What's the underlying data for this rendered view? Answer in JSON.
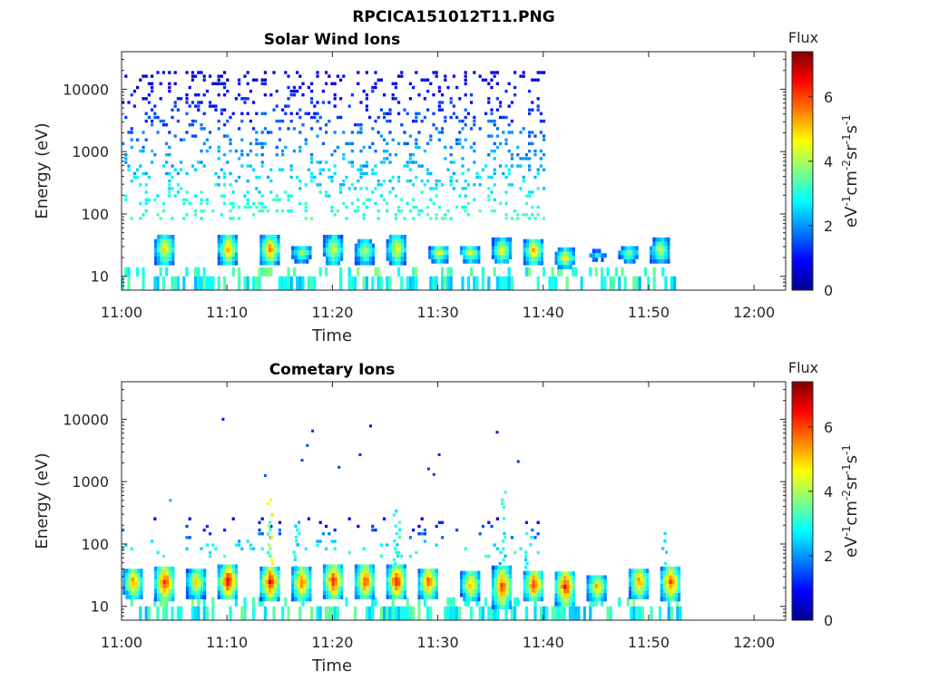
{
  "figure": {
    "title": "RPCICA151012T11.PNG"
  },
  "colormap": [
    "#00008f",
    "#0000ff",
    "#0080ff",
    "#00ffff",
    "#80ff80",
    "#ffff00",
    "#ff8000",
    "#ff0000",
    "#800000"
  ],
  "chart_data": [
    {
      "type": "heatmap",
      "title": "Solar Wind Ions",
      "xlabel": "Time",
      "ylabel": "Energy (eV)",
      "y_scale": "log",
      "ylim": [
        6,
        40000
      ],
      "xlim": [
        "11:00",
        "12:03"
      ],
      "x_tick_labels": [
        "11:00",
        "11:10",
        "11:20",
        "11:30",
        "11:40",
        "11:50",
        "12:00"
      ],
      "y_tick_labels": [
        "10",
        "100",
        "1000",
        "10000"
      ],
      "colorbar": {
        "title": "Flux",
        "label": "eV-1cm-2sr-1s-1",
        "range": [
          0,
          7.4
        ],
        "tick_labels": [
          "0",
          "2",
          "4",
          "6"
        ]
      },
      "grid": false,
      "sparse_region": {
        "start": "11:00",
        "end": "11:40",
        "emin": 80,
        "emax": 18000,
        "density": 0.16
      },
      "bursts": [
        {
          "t": "11:04",
          "e": [
            15,
            42
          ],
          "flux": 5.2
        },
        {
          "t": "11:10",
          "e": [
            15,
            42
          ],
          "flux": 5.6
        },
        {
          "t": "11:14",
          "e": [
            15,
            42
          ],
          "flux": 5.8
        },
        {
          "t": "11:17",
          "e": [
            16,
            30
          ],
          "flux": 4.2
        },
        {
          "t": "11:20",
          "e": [
            15,
            42
          ],
          "flux": 4.8
        },
        {
          "t": "11:23",
          "e": [
            15,
            36
          ],
          "flux": 4.5
        },
        {
          "t": "11:26",
          "e": [
            15,
            42
          ],
          "flux": 5.0
        },
        {
          "t": "11:30",
          "e": [
            16,
            30
          ],
          "flux": 4.8
        },
        {
          "t": "11:33",
          "e": [
            16,
            30
          ],
          "flux": 4.6
        },
        {
          "t": "11:36",
          "e": [
            16,
            36
          ],
          "flux": 5.0
        },
        {
          "t": "11:39",
          "e": [
            15,
            36
          ],
          "flux": 5.6
        },
        {
          "t": "11:42",
          "e": [
            13,
            26
          ],
          "flux": 5.0
        },
        {
          "t": "11:45",
          "e": [
            17,
            24
          ],
          "flux": 3.0
        },
        {
          "t": "11:48",
          "e": [
            16,
            30
          ],
          "flux": 4.0
        },
        {
          "t": "11:51",
          "e": [
            16,
            36
          ],
          "flux": 4.6
        }
      ]
    },
    {
      "type": "heatmap",
      "title": "Cometary Ions",
      "xlabel": "Time",
      "ylabel": "Energy (eV)",
      "y_scale": "log",
      "ylim": [
        6,
        40000
      ],
      "xlim": [
        "11:00",
        "12:03"
      ],
      "x_tick_labels": [
        "11:00",
        "11:10",
        "11:20",
        "11:30",
        "11:40",
        "11:50",
        "12:00"
      ],
      "y_tick_labels": [
        "10",
        "100",
        "1000",
        "10000"
      ],
      "colorbar": {
        "title": "Flux",
        "label": "eV-1cm-2sr-1s-1",
        "range": [
          0,
          7.4
        ],
        "tick_labels": [
          "0",
          "2",
          "4",
          "6"
        ]
      },
      "grid": false,
      "sparse_region": {
        "start": "11:00",
        "end": "11:40",
        "emin": 60,
        "emax": 250,
        "density": 0.05
      },
      "isolated_points": [
        {
          "t": "11:09.5",
          "e": 10000,
          "flux": 0.9
        },
        {
          "t": "11:04.5",
          "e": 500,
          "flux": 2.2
        },
        {
          "t": "11:13.5",
          "e": 1250,
          "flux": 1.6
        },
        {
          "t": "11:17",
          "e": 2200,
          "flux": 1.4
        },
        {
          "t": "11:17.5",
          "e": 3800,
          "flux": 1.4
        },
        {
          "t": "11:18",
          "e": 6500,
          "flux": 1.2
        },
        {
          "t": "11:20.5",
          "e": 1700,
          "flux": 1.3
        },
        {
          "t": "11:22.5",
          "e": 2700,
          "flux": 1.2
        },
        {
          "t": "11:23.5",
          "e": 7800,
          "flux": 1.0
        },
        {
          "t": "11:29",
          "e": 1600,
          "flux": 1.4
        },
        {
          "t": "11:29.5",
          "e": 1300,
          "flux": 1.3
        },
        {
          "t": "11:30",
          "e": 2700,
          "flux": 1.2
        },
        {
          "t": "11:35.5",
          "e": 6200,
          "flux": 1.0
        },
        {
          "t": "11:37.5",
          "e": 2100,
          "flux": 1.2
        }
      ],
      "bursts": [
        {
          "t": "11:01",
          "e": [
            13,
            40
          ],
          "flux": 5.8
        },
        {
          "t": "11:04",
          "e": [
            12,
            40
          ],
          "flux": 6.8
        },
        {
          "t": "11:07",
          "e": [
            13,
            40
          ],
          "flux": 5.2
        },
        {
          "t": "11:10",
          "e": [
            13,
            42
          ],
          "flux": 7.0
        },
        {
          "t": "11:14",
          "e": [
            12,
            42
          ],
          "flux": 6.9
        },
        {
          "t": "11:17",
          "e": [
            12,
            42
          ],
          "flux": 6.0
        },
        {
          "t": "11:20",
          "e": [
            13,
            42
          ],
          "flux": 6.8
        },
        {
          "t": "11:23",
          "e": [
            13,
            42
          ],
          "flux": 6.5
        },
        {
          "t": "11:26",
          "e": [
            13,
            42
          ],
          "flux": 6.9
        },
        {
          "t": "11:29",
          "e": [
            13,
            40
          ],
          "flux": 6.2
        },
        {
          "t": "11:33",
          "e": [
            12,
            36
          ],
          "flux": 5.6
        },
        {
          "t": "11:36",
          "e": [
            9,
            40
          ],
          "flux": 6.4
        },
        {
          "t": "11:39",
          "e": [
            12,
            36
          ],
          "flux": 6.6
        },
        {
          "t": "11:42",
          "e": [
            10,
            36
          ],
          "flux": 6.8
        },
        {
          "t": "11:45",
          "e": [
            12,
            30
          ],
          "flux": 5.5
        },
        {
          "t": "11:49",
          "e": [
            13,
            40
          ],
          "flux": 5.8
        },
        {
          "t": "11:52",
          "e": [
            12,
            42
          ],
          "flux": 6.4
        }
      ],
      "spikes": [
        {
          "t": "11:14",
          "e_top": 600,
          "flux": 4.5
        },
        {
          "t": "11:16.5",
          "e_top": 230,
          "flux": 3.0
        },
        {
          "t": "11:26",
          "e_top": 330,
          "flux": 3.2
        },
        {
          "t": "11:36",
          "e_top": 700,
          "flux": 3.2
        },
        {
          "t": "11:38.5",
          "e_top": 150,
          "flux": 3.0
        },
        {
          "t": "11:51.5",
          "e_top": 150,
          "flux": 3.0
        }
      ]
    }
  ]
}
